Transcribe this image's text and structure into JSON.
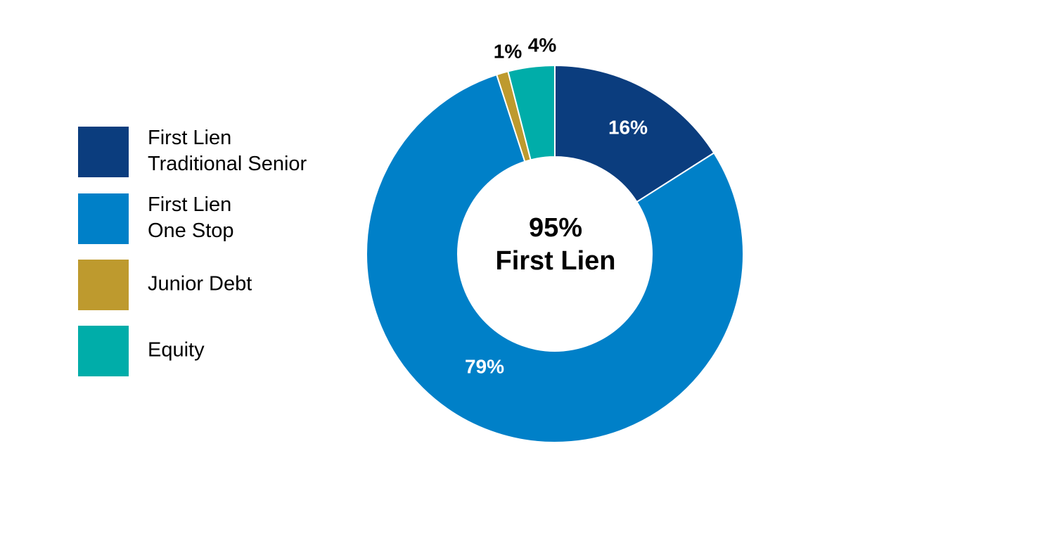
{
  "chart_data": {
    "type": "donut",
    "series": [
      {
        "name": [
          "First Lien",
          "Traditional Senior"
        ],
        "color": "#0b3d7e"
      },
      {
        "name": [
          "First Lien",
          "One Stop"
        ],
        "color": "#0080c8"
      },
      {
        "name": [
          "Junior Debt"
        ],
        "color": "#be9a2e"
      },
      {
        "name": [
          "Equity"
        ],
        "color": "#00ada9"
      }
    ],
    "values": [
      16,
      79,
      1,
      4
    ],
    "value_labels": [
      "16%",
      "79%",
      "1%",
      "4%"
    ],
    "annotation": [
      "95%",
      "First Lien"
    ]
  }
}
